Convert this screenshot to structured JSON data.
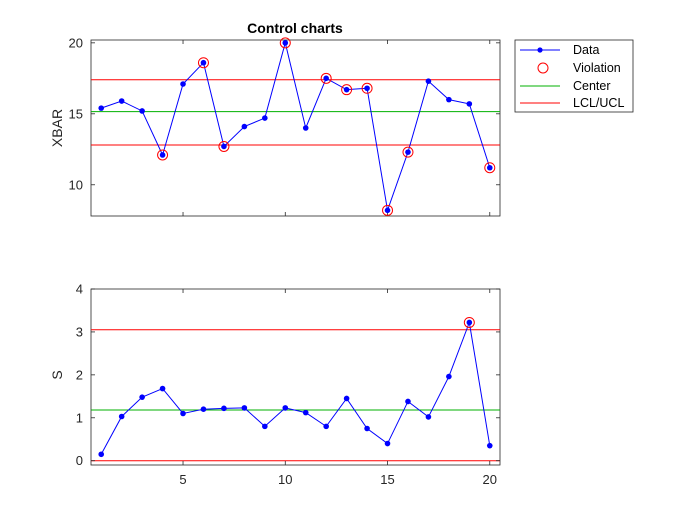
{
  "chart_data": [
    {
      "type": "line",
      "title": "Control charts",
      "xlabel": "",
      "ylabel": "XBAR",
      "xlim": [
        0.5,
        20.5
      ],
      "ylim": [
        7.8,
        20.2
      ],
      "yticks": [
        10,
        15,
        20
      ],
      "x": [
        1,
        2,
        3,
        4,
        5,
        6,
        7,
        8,
        9,
        10,
        11,
        12,
        13,
        14,
        15,
        16,
        17,
        18,
        19,
        20
      ],
      "series": [
        {
          "name": "Data",
          "values": [
            15.4,
            15.9,
            15.2,
            12.1,
            17.1,
            18.6,
            12.7,
            14.1,
            14.7,
            20.0,
            14.0,
            17.5,
            16.7,
            16.8,
            8.2,
            12.3,
            17.3,
            16.0,
            15.7,
            11.2
          ]
        }
      ],
      "violations": [
        4,
        6,
        7,
        10,
        12,
        13,
        14,
        15,
        16,
        20
      ],
      "center": 15.15,
      "lcl": 12.8,
      "ucl": 17.4,
      "legend": {
        "placement": "outside-top-right",
        "entries": [
          "Data",
          "Violation",
          "Center",
          "LCL/UCL"
        ]
      },
      "grid": false
    },
    {
      "type": "line",
      "title": "",
      "xlabel": "",
      "ylabel": "S",
      "xlim": [
        0.5,
        20.5
      ],
      "ylim": [
        -0.1,
        4
      ],
      "xticks": [
        5,
        10,
        15,
        20
      ],
      "yticks": [
        0,
        1,
        2,
        3,
        4
      ],
      "x": [
        1,
        2,
        3,
        4,
        5,
        6,
        7,
        8,
        9,
        10,
        11,
        12,
        13,
        14,
        15,
        16,
        17,
        18,
        19,
        20
      ],
      "series": [
        {
          "name": "Data",
          "values": [
            0.15,
            1.03,
            1.48,
            1.68,
            1.1,
            1.2,
            1.22,
            1.23,
            0.8,
            1.23,
            1.12,
            0.8,
            1.45,
            0.75,
            0.4,
            1.38,
            1.02,
            1.96,
            3.22,
            0.35
          ]
        }
      ],
      "violations": [
        19
      ],
      "center": 1.18,
      "lcl": 0,
      "ucl": 3.05,
      "grid": false
    }
  ],
  "colors": {
    "data": "#0000ff",
    "violation": "#ff0000",
    "center": "#00b000",
    "limits": "#ff0000",
    "axis": "#262626"
  }
}
